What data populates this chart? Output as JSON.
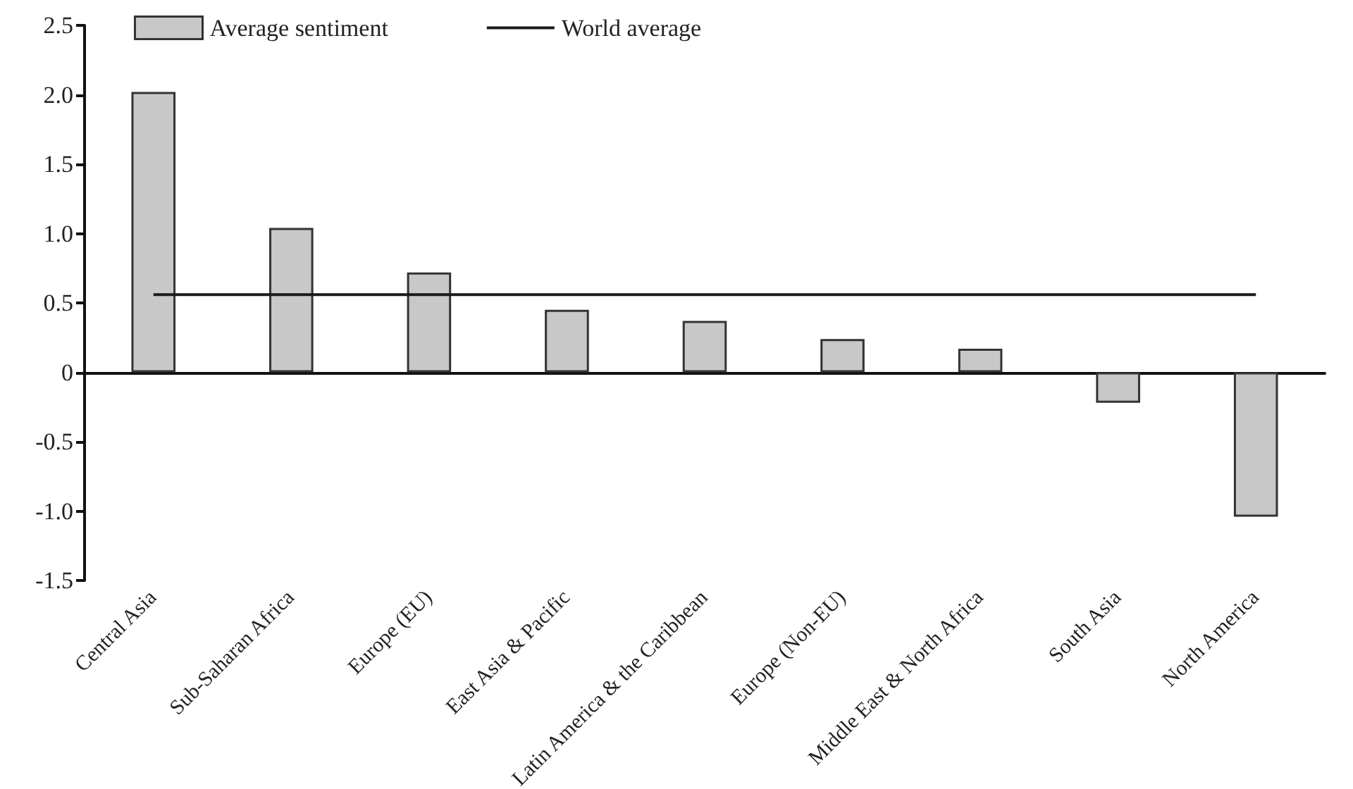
{
  "chart_data": {
    "type": "bar",
    "categories": [
      "Central Asia",
      "Sub-Saharan Africa",
      "Europe (EU)",
      "East Asia & Pacific",
      "Latin America & the Caribbean",
      "Europe (Non-EU)",
      "Middle East & North Africa",
      "South Asia",
      "North America"
    ],
    "series": [
      {
        "name": "Average sentiment",
        "color": "#c8c8c8",
        "values": [
          2.02,
          1.04,
          0.72,
          0.45,
          0.37,
          0.24,
          0.17,
          -0.22,
          -1.04
        ]
      },
      {
        "name": "World average",
        "type": "line",
        "color": "#1a1a1a",
        "marker": "none",
        "line_style": "solid",
        "values": [
          0.56,
          0.56,
          0.56,
          0.56,
          0.56,
          0.56,
          0.56,
          0.56,
          0.56
        ]
      }
    ],
    "ylim": [
      -1.5,
      2.5
    ],
    "yticks": [
      {
        "value": -1.5,
        "label": "-1.5"
      },
      {
        "value": -1,
        "label": "-1.0"
      },
      {
        "value": -0.5,
        "label": "-0.5"
      },
      0,
      {
        "value": 0.5,
        "label": "0.5"
      },
      {
        "value": 1,
        "label": "1.0"
      },
      {
        "value": 1.5,
        "label": "1.5"
      },
      {
        "value": 2,
        "label": "2.0"
      },
      {
        "value": 2.5,
        "label": "2.5"
      }
    ],
    "grid": false,
    "legend": "top"
  }
}
